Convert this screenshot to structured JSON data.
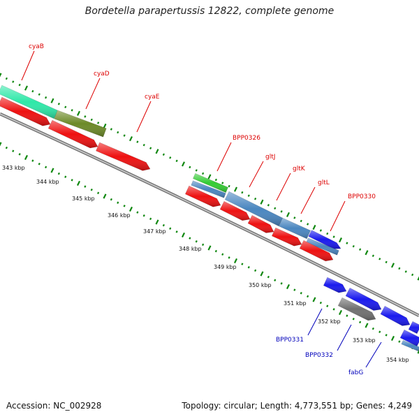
{
  "title": "Bordetella parapertussis 12822, complete genome",
  "accession": "Accession: NC_002928",
  "topology": "Topology: circular; Length: 4,773,551 bp; Genes: 4,249",
  "colors": {
    "red_gene": "#ee1111",
    "blue_gene": "#1a1aee",
    "gray_gene": "#707070",
    "steel_gene": "#4a86c0",
    "teal_gene": "#2ee8a8",
    "olive_gene": "#6c8a28",
    "green_gene": "#33cc33",
    "tick_green": "#118811",
    "label_red": "#dd0000",
    "label_blue": "#0000bb",
    "backbone": "#888888"
  },
  "kbp_labels": [
    "343 kbp",
    "344 kbp",
    "345 kbp",
    "346 kbp",
    "347 kbp",
    "348 kbp",
    "349 kbp",
    "350 kbp",
    "351 kbp",
    "352 kbp",
    "353 kbp",
    "354 kbp"
  ],
  "gene_labels_top": [
    "cyaB",
    "cyaD",
    "cyaE",
    "BPP0326",
    "gltJ",
    "gltK",
    "gltL",
    "BPP0330"
  ],
  "gene_labels_bottom": [
    "BPP0331",
    "BPP0332",
    "fabG"
  ]
}
